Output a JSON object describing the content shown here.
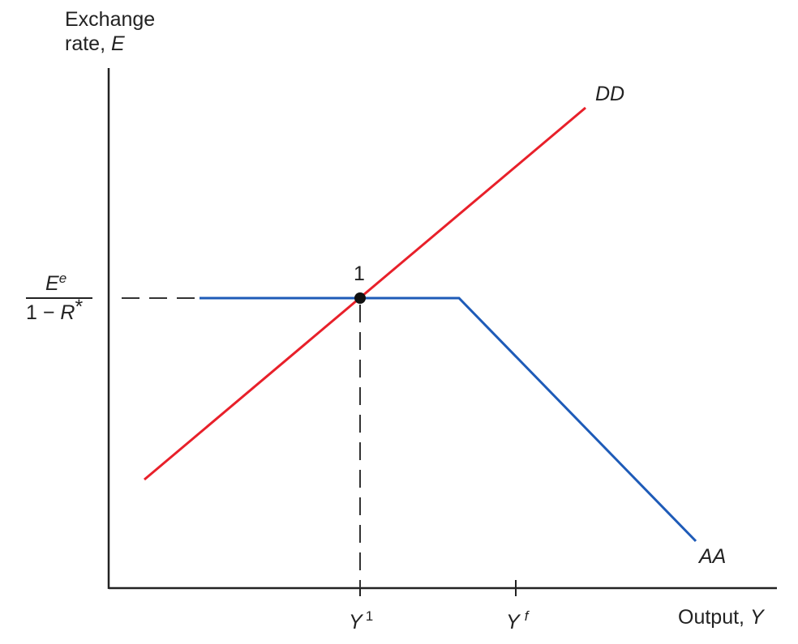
{
  "y_axis_label": {
    "line1": "Exchange",
    "line2_prefix": "rate, ",
    "line2_var": "E"
  },
  "x_axis_label": {
    "prefix": "Output, ",
    "var": "Y"
  },
  "exchange_level_label": {
    "numerator_base": "E",
    "numerator_sup": "e",
    "denominator_prefix": "1 − ",
    "denominator_var": "R",
    "denominator_star": "*"
  },
  "tick_y1": {
    "base": "Y",
    "sup": "1"
  },
  "tick_yf": {
    "base": "Y",
    "sup": "f"
  },
  "point_label": "1",
  "curves": {
    "dd": {
      "label": "DD",
      "color": "#e8202a"
    },
    "aa": {
      "label": "AA",
      "color": "#1e5bb8"
    }
  },
  "colors": {
    "axis": "#222222",
    "guide": "#333333",
    "point": "#111111"
  }
}
